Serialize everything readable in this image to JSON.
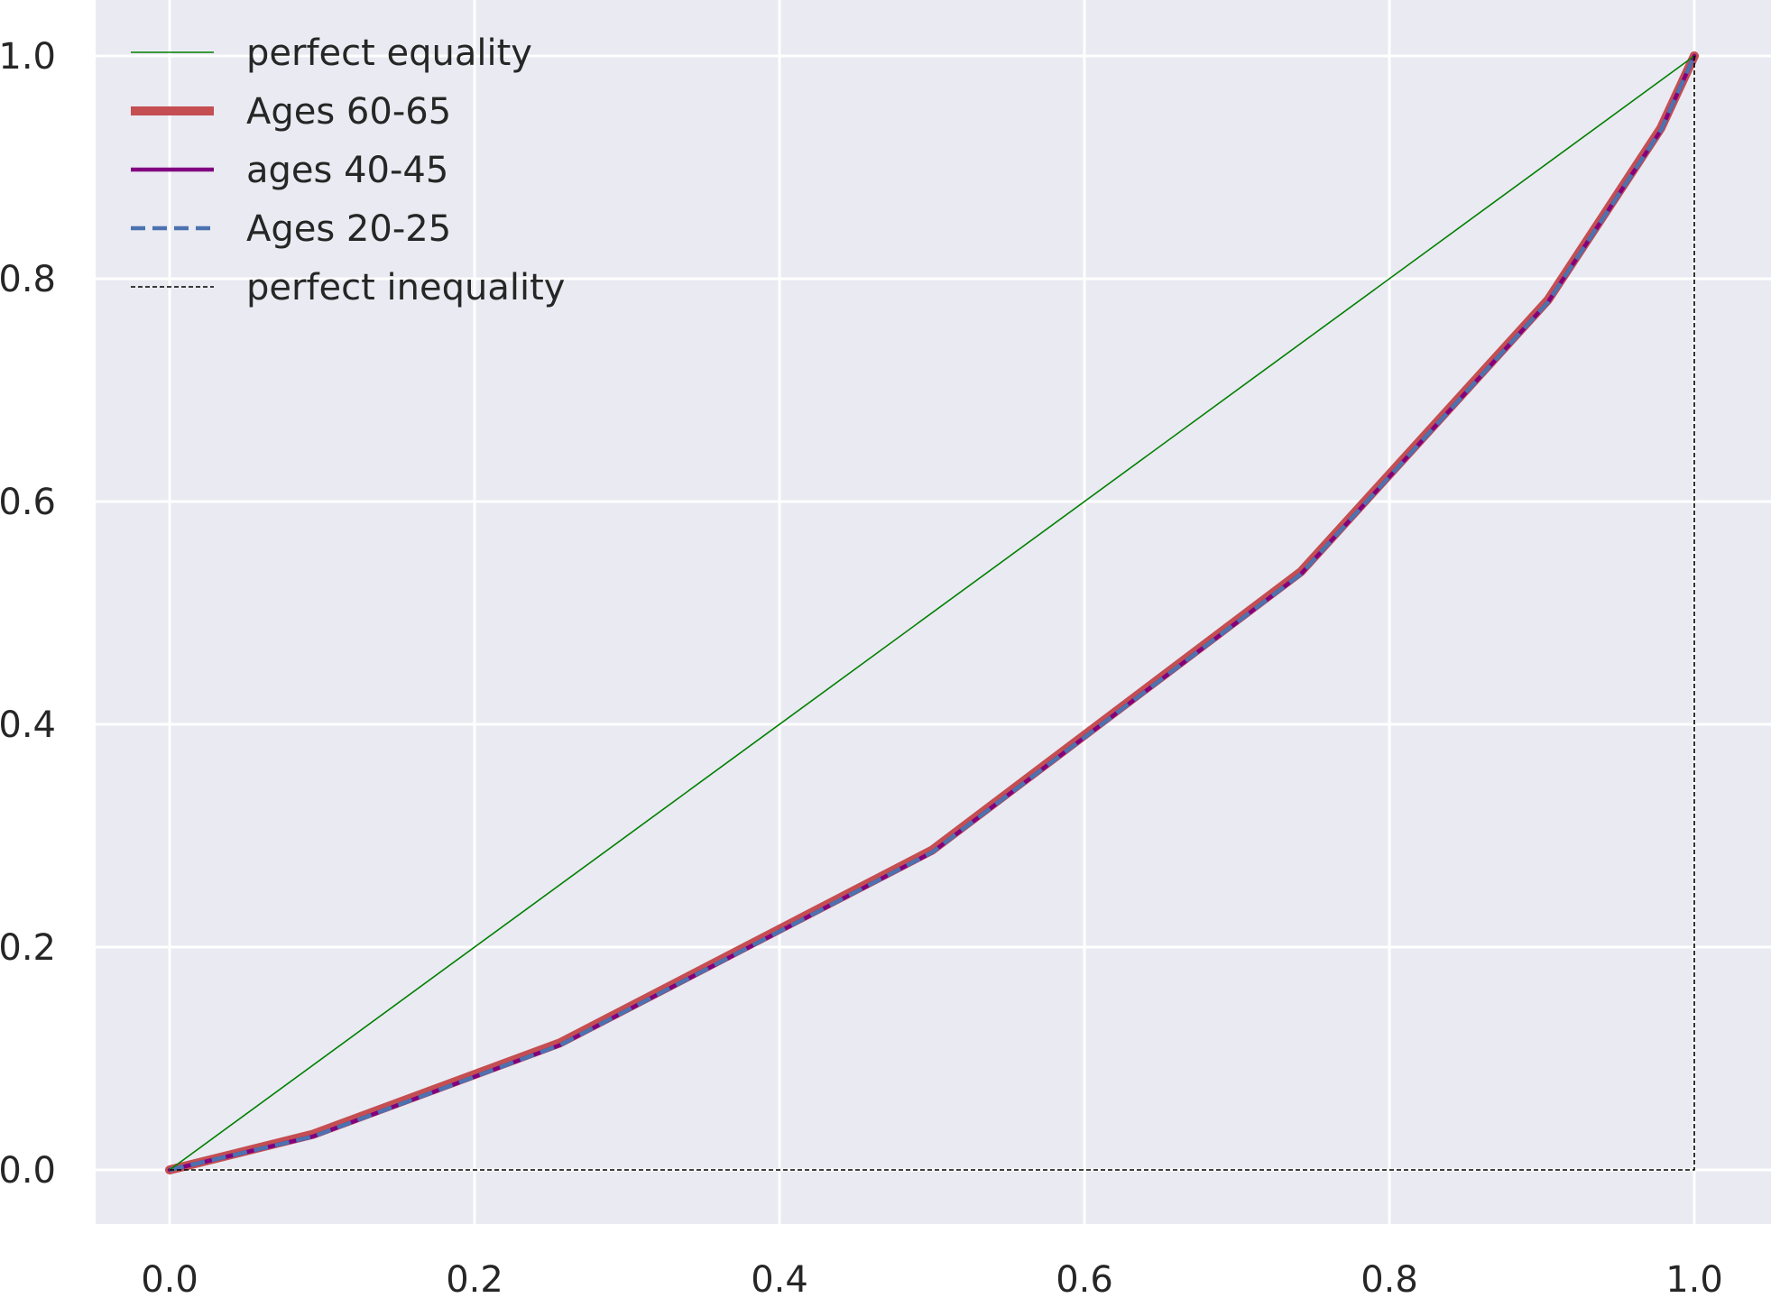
{
  "chart_data": {
    "type": "line",
    "title": "",
    "xlabel": "",
    "ylabel": "",
    "xlim": [
      -0.05,
      1.05
    ],
    "ylim": [
      -0.05,
      1.05
    ],
    "xticks": [
      "0.0",
      "0.2",
      "0.4",
      "0.6",
      "0.8",
      "1.0"
    ],
    "yticks": [
      "0.0",
      "0.2",
      "0.4",
      "0.6",
      "0.8",
      "1.0"
    ],
    "grid": true,
    "legend_position": "top-left",
    "background_color": "#EAEAF2",
    "series": [
      {
        "name": "perfect equality",
        "color": "#008000",
        "style": "solid-thin",
        "x": [
          0,
          1
        ],
        "y": [
          0,
          1
        ]
      },
      {
        "name": "Ages 60-65",
        "color": "#C44E52",
        "style": "solid-thick",
        "x": [
          0,
          0.094,
          0.256,
          0.5,
          0.742,
          0.904,
          0.978,
          1.0
        ],
        "y": [
          0,
          0.032,
          0.114,
          0.287,
          0.537,
          0.781,
          0.935,
          1.0
        ]
      },
      {
        "name": "ages 40-45",
        "color": "#800080",
        "style": "solid",
        "x": [
          0,
          0.094,
          0.256,
          0.5,
          0.742,
          0.904,
          0.978,
          1.0
        ],
        "y": [
          0,
          0.03,
          0.112,
          0.285,
          0.535,
          0.779,
          0.933,
          1.0
        ]
      },
      {
        "name": "Ages 20-25",
        "color": "#4C72B0",
        "style": "dashed",
        "x": [
          0,
          0.094,
          0.256,
          0.5,
          0.742,
          0.904,
          0.978,
          1.0
        ],
        "y": [
          0,
          0.03,
          0.112,
          0.285,
          0.535,
          0.779,
          0.933,
          1.0
        ]
      },
      {
        "name": "perfect inequality",
        "color": "#000000",
        "style": "dotted-thin",
        "x": [
          0,
          1,
          1
        ],
        "y": [
          0,
          0,
          1
        ]
      }
    ]
  }
}
